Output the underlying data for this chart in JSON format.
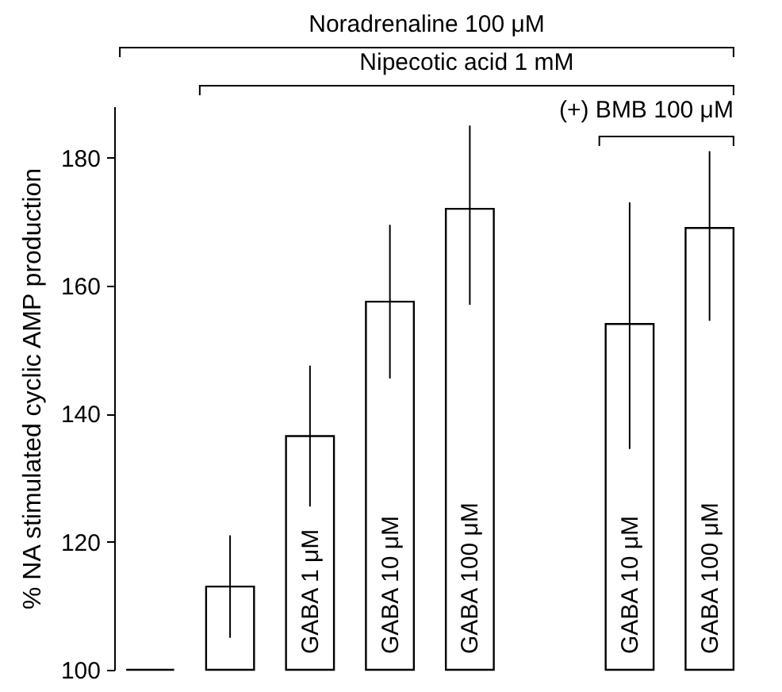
{
  "chart_data": {
    "type": "bar",
    "ylabel": "% NA stimulated cyclic AMP production",
    "categories": [
      null,
      null,
      "GABA 1 μM",
      "GABA 10 μM",
      "GABA 100 μM",
      null,
      "GABA 10 μM",
      "GABA 100 μM"
    ],
    "values": [
      100,
      113,
      136.5,
      157.5,
      172,
      null,
      154,
      169
    ],
    "errors": [
      null,
      [
        105,
        121
      ],
      [
        125.5,
        147.5
      ],
      [
        145.5,
        169.5
      ],
      [
        157,
        185
      ],
      null,
      [
        134.5,
        173
      ],
      [
        154.5,
        181
      ]
    ],
    "colors": [
      "#000000",
      "#ffffff",
      "#ffffff",
      "#ffffff",
      "#ffffff",
      null,
      "#ffffff",
      "#ffffff"
    ],
    "ylim": [
      100,
      188
    ],
    "yticks": [
      100,
      120,
      140,
      160,
      180
    ],
    "grid": false,
    "annotations": [
      "Noradrenaline 100 μM",
      "Nipecotic acid 1 mM",
      "(+) BMB 100 μM"
    ]
  }
}
